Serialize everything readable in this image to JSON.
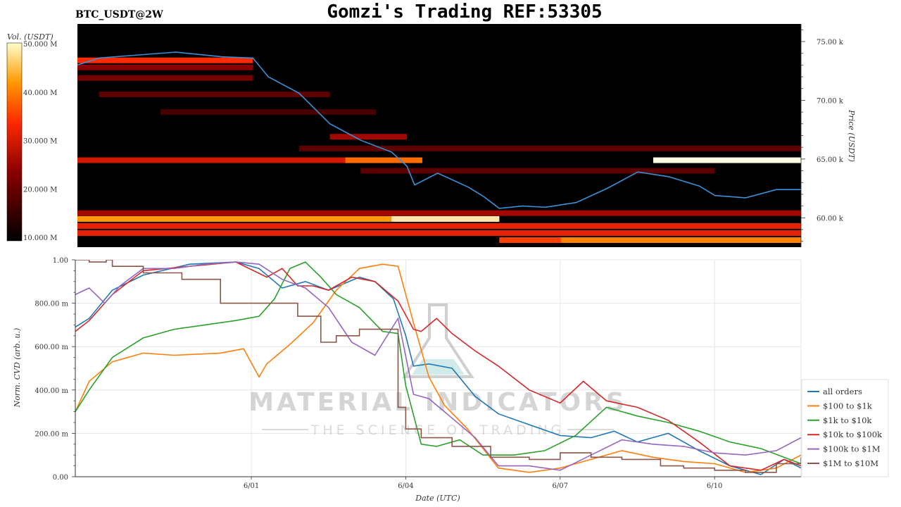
{
  "header": {
    "symbol": "BTC_USDT@2W",
    "title": "Gomzi's Trading REF:53305"
  },
  "watermark": {
    "line1": "MATERIAL INDICATORS",
    "line2": "THE SCIENCE OF TRADING"
  },
  "colors": {
    "all": "#1f77b4",
    "r100_1k": "#ff7f0e",
    "r1k_10k": "#2ca02c",
    "r10k_100k": "#d62728",
    "r100k_1m": "#9467bd",
    "r1m_10m": "#8c564b",
    "price": "#3b8fd4"
  },
  "chart_data": [
    {
      "type": "heatmap",
      "colorbar": {
        "label": "Vol. (USDT)",
        "ticks": [
          "50.000 M",
          "40.000 M",
          "30.000 M",
          "20.000 M",
          "10.000 M"
        ],
        "values": [
          50,
          40,
          30,
          20,
          10
        ],
        "range": [
          10,
          50
        ]
      },
      "y_axis": {
        "label": "Price (USDT)",
        "ticks": [
          "75.00 k",
          "70.00 k",
          "65.00 k",
          "60.00 k"
        ],
        "values": [
          75,
          70,
          65,
          60
        ],
        "range": [
          57.5,
          76.5
        ]
      },
      "x_range_days": [
        28.86,
        33.56
      ],
      "bands": [
        {
          "price": 73.4,
          "x0": 28.86,
          "x1": 30.0,
          "intensity": 0.55
        },
        {
          "price": 72.8,
          "x0": 28.86,
          "x1": 30.0,
          "intensity": 0.3
        },
        {
          "price": 71.9,
          "x0": 28.86,
          "x1": 30.0,
          "intensity": 0.25
        },
        {
          "price": 70.5,
          "x0": 29.0,
          "x1": 30.5,
          "intensity": 0.2
        },
        {
          "price": 69.0,
          "x0": 29.4,
          "x1": 30.8,
          "intensity": 0.15
        },
        {
          "price": 66.9,
          "x0": 30.5,
          "x1": 31.0,
          "intensity": 0.35
        },
        {
          "price": 65.9,
          "x0": 30.3,
          "x1": 33.56,
          "intensity": 0.2
        },
        {
          "price": 64.9,
          "x0": 28.86,
          "x1": 31.0,
          "intensity": 0.45
        },
        {
          "price": 64.9,
          "x0": 30.6,
          "x1": 31.1,
          "intensity": 0.7
        },
        {
          "price": 64.9,
          "x0": 32.6,
          "x1": 33.56,
          "intensity": 1.0
        },
        {
          "price": 64.0,
          "x0": 30.7,
          "x1": 33.0,
          "intensity": 0.2
        },
        {
          "price": 60.4,
          "x0": 28.86,
          "x1": 33.56,
          "intensity": 0.35
        },
        {
          "price": 59.9,
          "x0": 28.86,
          "x1": 31.6,
          "intensity": 0.8
        },
        {
          "price": 59.9,
          "x0": 30.9,
          "x1": 31.6,
          "intensity": 0.95
        },
        {
          "price": 59.3,
          "x0": 28.86,
          "x1": 33.56,
          "intensity": 0.5
        },
        {
          "price": 58.7,
          "x0": 28.86,
          "x1": 33.56,
          "intensity": 0.5
        },
        {
          "price": 58.1,
          "x0": 31.6,
          "x1": 33.56,
          "intensity": 0.6
        },
        {
          "price": 58.1,
          "x0": 32.0,
          "x1": 33.56,
          "intensity": 0.75
        }
      ],
      "price_series": {
        "x": [
          28.86,
          29.0,
          29.2,
          29.5,
          29.8,
          30.0,
          30.1,
          30.3,
          30.5,
          30.7,
          30.9,
          31.0,
          31.05,
          31.2,
          31.4,
          31.5,
          31.6,
          31.75,
          31.9,
          32.1,
          32.3,
          32.5,
          32.7,
          32.9,
          33.0,
          33.2,
          33.4,
          33.56
        ],
        "y": [
          73.0,
          73.6,
          73.8,
          74.1,
          73.7,
          73.6,
          72.0,
          70.6,
          68.0,
          66.6,
          65.6,
          64.4,
          62.8,
          63.8,
          62.6,
          61.8,
          60.8,
          61.0,
          60.9,
          61.3,
          62.5,
          63.9,
          63.5,
          62.7,
          61.9,
          61.7,
          62.4,
          62.4
        ]
      }
    },
    {
      "type": "line",
      "xlabel": "Date (UTC)",
      "ylabel": "Norm. CVD (arb. u.)",
      "x_ticks": [
        "6/01",
        "6/04",
        "6/07",
        "6/10"
      ],
      "x_tick_values": [
        30,
        31,
        32,
        33
      ],
      "x_range": [
        28.86,
        33.56
      ],
      "y_ticks": [
        "1.00",
        "800.00 m",
        "600.00 m",
        "400.00 m",
        "200.00 m",
        "0.00"
      ],
      "y_tick_values": [
        1.0,
        0.8,
        0.6,
        0.4,
        0.2,
        0.0
      ],
      "ylim": [
        0,
        1
      ],
      "grid": true,
      "legend": "right",
      "series": [
        {
          "name": "all orders",
          "color": "#1f77b4",
          "x": [
            28.86,
            28.95,
            29.1,
            29.3,
            29.6,
            29.9,
            30.05,
            30.2,
            30.35,
            30.5,
            30.7,
            30.8,
            30.92,
            31.0,
            31.05,
            31.15,
            31.3,
            31.45,
            31.6,
            31.8,
            32.0,
            32.2,
            32.35,
            32.5,
            32.7,
            32.9,
            33.1,
            33.3,
            33.45,
            33.56
          ],
          "y": [
            0.69,
            0.73,
            0.86,
            0.93,
            0.98,
            0.99,
            0.96,
            0.87,
            0.9,
            0.86,
            0.92,
            0.9,
            0.82,
            0.65,
            0.51,
            0.52,
            0.5,
            0.37,
            0.29,
            0.24,
            0.19,
            0.18,
            0.21,
            0.16,
            0.2,
            0.12,
            0.05,
            0.01,
            0.08,
            0.04
          ]
        },
        {
          "name": "$100 to $1k",
          "color": "#ff7f0e",
          "x": [
            28.86,
            28.95,
            29.1,
            29.3,
            29.5,
            29.8,
            29.95,
            30.05,
            30.1,
            30.25,
            30.4,
            30.55,
            30.7,
            30.85,
            30.95,
            31.05,
            31.15,
            31.25,
            31.4,
            31.6,
            31.8,
            32.0,
            32.2,
            32.4,
            32.6,
            32.8,
            33.0,
            33.2,
            33.4,
            33.56
          ],
          "y": [
            0.3,
            0.44,
            0.53,
            0.57,
            0.56,
            0.57,
            0.59,
            0.46,
            0.52,
            0.61,
            0.71,
            0.86,
            0.96,
            0.98,
            0.97,
            0.71,
            0.46,
            0.33,
            0.22,
            0.04,
            0.02,
            0.04,
            0.08,
            0.12,
            0.09,
            0.07,
            0.06,
            0.02,
            0.04,
            0.1
          ]
        },
        {
          "name": "$1k to $10k",
          "color": "#2ca02c",
          "x": [
            28.86,
            28.95,
            29.1,
            29.3,
            29.5,
            29.7,
            29.9,
            30.05,
            30.15,
            30.25,
            30.35,
            30.45,
            30.55,
            30.7,
            30.85,
            30.95,
            31.0,
            31.1,
            31.2,
            31.35,
            31.5,
            31.7,
            31.9,
            32.1,
            32.3,
            32.5,
            32.7,
            32.9,
            33.1,
            33.3,
            33.56
          ],
          "y": [
            0.3,
            0.4,
            0.55,
            0.64,
            0.68,
            0.7,
            0.72,
            0.74,
            0.82,
            0.96,
            0.99,
            0.92,
            0.84,
            0.78,
            0.67,
            0.66,
            0.42,
            0.15,
            0.14,
            0.17,
            0.1,
            0.1,
            0.12,
            0.19,
            0.32,
            0.28,
            0.25,
            0.21,
            0.16,
            0.13,
            0.06
          ]
        },
        {
          "name": "$10k to $100k",
          "color": "#d62728",
          "x": [
            28.86,
            28.95,
            29.1,
            29.3,
            29.6,
            29.9,
            30.1,
            30.2,
            30.3,
            30.4,
            30.5,
            30.65,
            30.8,
            30.95,
            31.05,
            31.1,
            31.2,
            31.3,
            31.45,
            31.6,
            31.8,
            32.0,
            32.15,
            32.3,
            32.5,
            32.7,
            32.9,
            33.1,
            33.3,
            33.45,
            33.56
          ],
          "y": [
            0.67,
            0.72,
            0.84,
            0.95,
            0.97,
            0.99,
            0.92,
            0.96,
            0.88,
            0.88,
            0.86,
            0.92,
            0.9,
            0.81,
            0.68,
            0.67,
            0.73,
            0.66,
            0.58,
            0.51,
            0.4,
            0.34,
            0.44,
            0.35,
            0.32,
            0.26,
            0.16,
            0.05,
            0.03,
            0.08,
            0.05
          ]
        },
        {
          "name": "$100k to $1M",
          "color": "#9467bd",
          "x": [
            28.86,
            28.95,
            29.05,
            29.15,
            29.3,
            29.5,
            29.7,
            29.9,
            30.05,
            30.2,
            30.35,
            30.5,
            30.65,
            30.8,
            30.95,
            31.05,
            31.15,
            31.3,
            31.45,
            31.6,
            31.8,
            32.0,
            32.2,
            32.4,
            32.6,
            32.8,
            33.0,
            33.2,
            33.4,
            33.56
          ],
          "y": [
            0.84,
            0.87,
            0.8,
            0.88,
            0.96,
            0.96,
            0.98,
            0.99,
            0.98,
            0.91,
            0.87,
            0.78,
            0.62,
            0.56,
            0.73,
            0.38,
            0.36,
            0.27,
            0.18,
            0.05,
            0.05,
            0.03,
            0.1,
            0.17,
            0.15,
            0.14,
            0.11,
            0.1,
            0.12,
            0.18
          ]
        },
        {
          "name": "$1M to $10M",
          "color": "#8c564b",
          "x": [
            28.86,
            28.95,
            29.06,
            29.1,
            29.3,
            29.55,
            29.8,
            29.95,
            30.1,
            30.3,
            30.45,
            30.55,
            30.7,
            30.9,
            30.95,
            31.0,
            31.1,
            31.3,
            31.55,
            31.8,
            32.0,
            32.2,
            32.4,
            32.65,
            32.8,
            33.0,
            33.2,
            33.4,
            33.56
          ],
          "y": [
            1.0,
            0.99,
            1.0,
            0.97,
            0.94,
            0.91,
            0.8,
            0.8,
            0.8,
            0.74,
            0.62,
            0.65,
            0.68,
            0.68,
            0.32,
            0.22,
            0.18,
            0.14,
            0.09,
            0.08,
            0.11,
            0.09,
            0.08,
            0.05,
            0.04,
            0.03,
            0.02,
            0.06,
            0.09
          ]
        }
      ]
    }
  ]
}
